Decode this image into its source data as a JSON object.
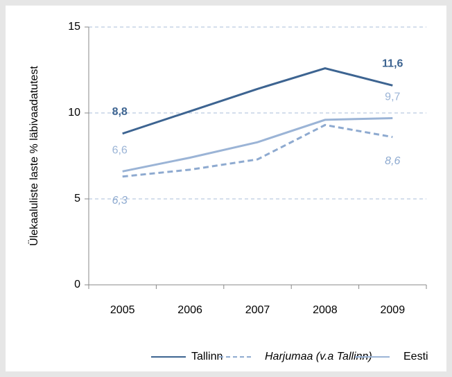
{
  "chart_data": {
    "type": "line",
    "y_axis_label": "Ülekaaluliste laste % läbivaadatutest",
    "categories": [
      "2005",
      "2006",
      "2007",
      "2008",
      "2009"
    ],
    "series": [
      {
        "name": "Tallinn",
        "color": "#3d6491",
        "dashed": false,
        "values": [
          8.8,
          10.1,
          11.4,
          12.6,
          11.6
        ],
        "value_labels": [
          "8,8",
          null,
          null,
          null,
          "11,6"
        ]
      },
      {
        "name": "Harjumaa (v.a Tallinn)",
        "color": "#8eaad0",
        "dashed": true,
        "values": [
          6.3,
          6.7,
          7.3,
          9.3,
          8.6
        ],
        "value_labels": [
          "6,3",
          null,
          null,
          null,
          "8,6"
        ]
      },
      {
        "name": "Eesti",
        "color": "#9bb4d6",
        "dashed": false,
        "values": [
          6.6,
          7.4,
          8.3,
          9.6,
          9.7
        ],
        "value_labels": [
          "6,6",
          null,
          null,
          null,
          "9,7"
        ]
      }
    ],
    "ylim": [
      0,
      15
    ],
    "yticks": [
      0,
      5,
      10,
      15
    ],
    "grid": true,
    "legend": "bottom"
  }
}
